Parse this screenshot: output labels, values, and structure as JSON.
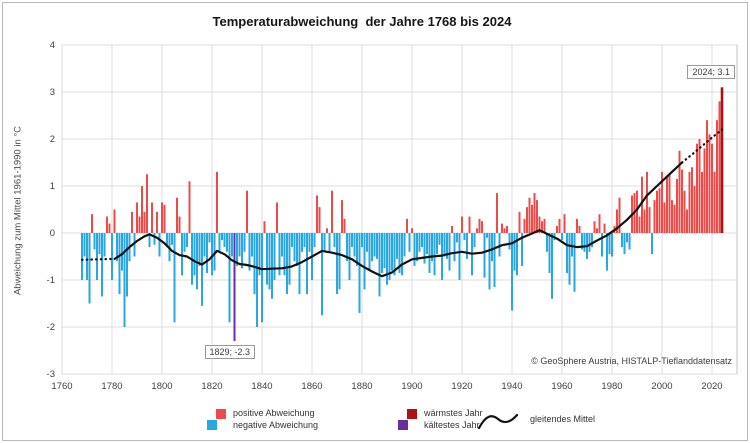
{
  "page": {
    "background": "#ffffff",
    "border_color": "#b9b9b9"
  },
  "chart": {
    "title": "Temperaturabweichung  der Jahre 1768 bis 2024",
    "y_axis_title": "Abweichung zum Mittel 1961-1990 in °C",
    "copyright": "© GeoSphere Austria, HISTALP-Tieflanddatensatz"
  },
  "legend": {
    "positive": "positive Abweichung",
    "negative": "negative Abweichung",
    "warmest": "wärmstes Jahr",
    "coldest": "kältestes Jahr",
    "moving_average": "gleitendes Mittel"
  },
  "annotations": {
    "warmest_label": "2024; 3.1",
    "coldest_label": "1829; -2.3"
  },
  "chart_data": {
    "type": "bar",
    "title": "Temperaturabweichung  der Jahre 1768 bis 2024",
    "xlabel": "",
    "ylabel": "Abweichung zum Mittel 1961-1990 in °C",
    "x_start": 1768,
    "x_end": 2024,
    "xlim": [
      1760,
      2030
    ],
    "ylim": [
      -3,
      4
    ],
    "grid": true,
    "legend_position": "bottom",
    "x_ticks": [
      1760,
      1780,
      1800,
      1820,
      1840,
      1860,
      1880,
      1900,
      1920,
      1940,
      1960,
      1980,
      2000,
      2020
    ],
    "y_ticks": [
      4,
      3,
      2,
      1,
      0,
      -1,
      -2,
      -3
    ],
    "values": [
      -1.0,
      -0.5,
      -1.0,
      -1.5,
      0.4,
      -0.35,
      -1.0,
      -0.45,
      -1.35,
      -0.5,
      0.35,
      0.2,
      -1.0,
      0.5,
      -0.6,
      -1.3,
      -0.8,
      -2.0,
      -1.35,
      -0.6,
      0.45,
      -0.5,
      0.65,
      0.35,
      1.0,
      0.45,
      1.25,
      -0.3,
      0.65,
      -0.25,
      0.45,
      -0.5,
      0.65,
      0.6,
      -0.3,
      -0.6,
      -0.25,
      -1.9,
      0.75,
      0.35,
      -0.9,
      -0.4,
      -0.3,
      1.1,
      -1.1,
      -0.9,
      -1.2,
      -0.7,
      -1.55,
      -0.5,
      -0.85,
      -0.2,
      -0.9,
      -0.8,
      1.3,
      -0.4,
      -0.15,
      -0.3,
      -0.4,
      -1.9,
      -0.5,
      -2.3,
      -0.7,
      -0.5,
      -0.75,
      -0.4,
      0.9,
      -0.8,
      -0.5,
      -1.3,
      -2.0,
      -0.9,
      -1.9,
      0.25,
      -1.1,
      -1.2,
      -1.4,
      -1.0,
      0.65,
      -0.9,
      -0.5,
      -0.9,
      -1.3,
      -1.1,
      -0.3,
      -0.6,
      -0.7,
      -1.3,
      -0.4,
      -0.3,
      -1.3,
      -0.4,
      -1.0,
      -0.3,
      0.8,
      0.55,
      -1.75,
      -0.4,
      0.1,
      -0.4,
      0.9,
      -0.3,
      -1.3,
      -1.2,
      0.7,
      0.3,
      -0.6,
      -1.0,
      -0.3,
      -0.5,
      -0.7,
      -1.7,
      -0.3,
      -1.2,
      -0.4,
      -0.8,
      -0.6,
      -0.5,
      -0.55,
      -1.35,
      -0.85,
      -0.75,
      -1.1,
      -1.0,
      -0.8,
      -0.9,
      -0.55,
      -0.85,
      -0.9,
      -0.5,
      0.3,
      -0.4,
      0.1,
      -0.7,
      -0.6,
      -0.4,
      -0.3,
      -0.65,
      -0.45,
      -0.85,
      -0.6,
      -0.9,
      -0.45,
      -0.25,
      -1.0,
      -0.5,
      -0.55,
      -0.8,
      0.15,
      -0.6,
      -0.2,
      -1.0,
      0.35,
      -0.15,
      -0.55,
      0.35,
      -0.9,
      -0.3,
      0.1,
      0.3,
      0.25,
      -0.95,
      -0.1,
      -1.2,
      -0.6,
      -1.15,
      0.85,
      -0.5,
      0.2,
      0.1,
      0.15,
      -0.35,
      -1.65,
      -0.8,
      -0.9,
      0.45,
      -0.7,
      0.3,
      0.55,
      0.75,
      0.6,
      0.85,
      0.7,
      0.35,
      0.25,
      0.3,
      -0.4,
      -0.85,
      -1.4,
      -0.15,
      0.15,
      0.3,
      -0.15,
      0.4,
      -0.85,
      -1.1,
      -0.5,
      -1.25,
      0.3,
      0.15,
      -0.35,
      -0.4,
      -0.55,
      -0.4,
      -0.3,
      0.25,
      0.1,
      0.4,
      -0.5,
      0.2,
      -0.8,
      -0.45,
      -0.5,
      0.15,
      0.5,
      0.75,
      -0.3,
      -0.45,
      -0.2,
      -0.35,
      0.8,
      0.85,
      0.9,
      0.35,
      1.2,
      0.5,
      1.3,
      0.55,
      -0.45,
      0.7,
      0.9,
      0.95,
      1.3,
      0.65,
      1.2,
      1.25,
      0.7,
      0.6,
      1.15,
      1.75,
      1.35,
      0.9,
      0.5,
      1.3,
      1.4,
      1.0,
      1.9,
      2.0,
      1.3,
      1.8,
      2.4,
      2.1,
      1.9,
      1.3,
      2.4,
      2.8,
      3.1
    ],
    "warmest_year": {
      "year": 2024,
      "value": 3.1,
      "label": "2024; 3.1"
    },
    "coldest_year": {
      "year": 1829,
      "value": -2.3,
      "label": "1829; -2.3"
    },
    "moving_average": {
      "name": "gleitendes Mittel",
      "dotted_start": [
        [
          1768,
          -0.57
        ],
        [
          1781,
          -0.55
        ]
      ],
      "solid": [
        [
          1781,
          -0.55
        ],
        [
          1784,
          -0.45
        ],
        [
          1787,
          -0.3
        ],
        [
          1790,
          -0.17
        ],
        [
          1793,
          -0.07
        ],
        [
          1795,
          -0.03
        ],
        [
          1798,
          -0.1
        ],
        [
          1801,
          -0.22
        ],
        [
          1804,
          -0.38
        ],
        [
          1807,
          -0.47
        ],
        [
          1810,
          -0.5
        ],
        [
          1813,
          -0.6
        ],
        [
          1816,
          -0.67
        ],
        [
          1819,
          -0.56
        ],
        [
          1822,
          -0.38
        ],
        [
          1825,
          -0.45
        ],
        [
          1828,
          -0.58
        ],
        [
          1831,
          -0.66
        ],
        [
          1834,
          -0.68
        ],
        [
          1837,
          -0.72
        ],
        [
          1840,
          -0.77
        ],
        [
          1844,
          -0.76
        ],
        [
          1848,
          -0.75
        ],
        [
          1852,
          -0.71
        ],
        [
          1856,
          -0.62
        ],
        [
          1860,
          -0.5
        ],
        [
          1864,
          -0.38
        ],
        [
          1868,
          -0.42
        ],
        [
          1872,
          -0.47
        ],
        [
          1876,
          -0.56
        ],
        [
          1880,
          -0.7
        ],
        [
          1884,
          -0.82
        ],
        [
          1888,
          -0.92
        ],
        [
          1892,
          -0.84
        ],
        [
          1896,
          -0.67
        ],
        [
          1900,
          -0.56
        ],
        [
          1904,
          -0.53
        ],
        [
          1908,
          -0.5
        ],
        [
          1912,
          -0.48
        ],
        [
          1916,
          -0.43
        ],
        [
          1920,
          -0.4
        ],
        [
          1924,
          -0.44
        ],
        [
          1928,
          -0.42
        ],
        [
          1932,
          -0.35
        ],
        [
          1936,
          -0.26
        ],
        [
          1940,
          -0.22
        ],
        [
          1944,
          -0.1
        ],
        [
          1948,
          -0.01
        ],
        [
          1951,
          0.06
        ],
        [
          1954,
          -0.02
        ],
        [
          1958,
          -0.12
        ],
        [
          1962,
          -0.26
        ],
        [
          1966,
          -0.3
        ],
        [
          1970,
          -0.28
        ],
        [
          1974,
          -0.16
        ],
        [
          1978,
          -0.05
        ],
        [
          1982,
          0.1
        ],
        [
          1986,
          0.28
        ],
        [
          1990,
          0.5
        ],
        [
          1994,
          0.8
        ],
        [
          1998,
          1.0
        ],
        [
          2002,
          1.2
        ],
        [
          2005,
          1.35
        ],
        [
          2008,
          1.5
        ]
      ],
      "dotted_end": [
        [
          2008,
          1.5
        ],
        [
          2012,
          1.67
        ],
        [
          2016,
          1.85
        ],
        [
          2020,
          2.03
        ],
        [
          2024,
          2.2
        ]
      ]
    },
    "colors": {
      "positive": "#ec4c49",
      "negative": "#29a7e1",
      "warmest": "#b01116",
      "coldest": "#6a2ea0",
      "line": "#121212",
      "grid": "#dcdcdc",
      "plot_border": "#c3c3c3",
      "text": "#3f3f3f"
    }
  }
}
